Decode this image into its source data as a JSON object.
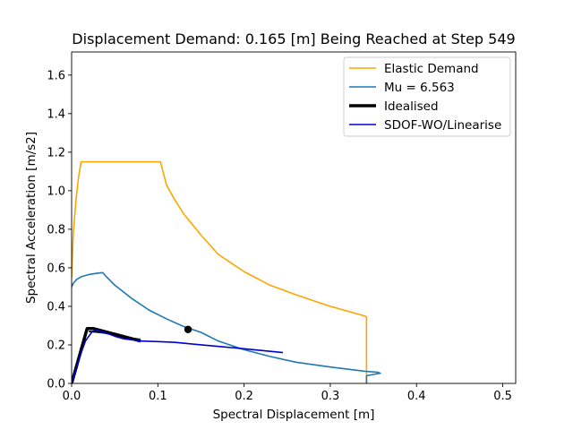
{
  "chart_data": {
    "type": "line",
    "title": "Displacement Demand: 0.165 [m] Being Reached at Step 549",
    "xlabel": "Spectral Displacement [m]",
    "ylabel": "Spectral Acceleration [m/s2]",
    "xlim": [
      0,
      0.515
    ],
    "ylim": [
      0,
      1.72
    ],
    "xticks": [
      0,
      0.1,
      0.2,
      0.3,
      0.4,
      0.5
    ],
    "xtick_labels": [
      "0.0",
      "0.1",
      "0.2",
      "0.3",
      "0.4",
      "0.5"
    ],
    "yticks": [
      0,
      0.2,
      0.4,
      0.6,
      0.8,
      1.0,
      1.2,
      1.4,
      1.6
    ],
    "ytick_labels": [
      "0.0",
      "0.2",
      "0.4",
      "0.6",
      "0.8",
      "1.0",
      "1.2",
      "1.4",
      "1.6"
    ],
    "grid": false,
    "legend_position": "top-right",
    "series": [
      {
        "name": "Elastic Demand",
        "color": "#ffa500",
        "width": 1.6,
        "x": [
          0,
          0.002,
          0.005,
          0.008,
          0.011,
          0.015,
          0.05,
          0.1,
          0.103,
          0.11,
          0.12,
          0.13,
          0.15,
          0.17,
          0.2,
          0.23,
          0.26,
          0.3,
          0.34,
          0.342,
          0.342
        ],
        "y": [
          0.55,
          0.78,
          0.95,
          1.07,
          1.15,
          1.15,
          1.15,
          1.15,
          1.15,
          1.03,
          0.95,
          0.88,
          0.77,
          0.67,
          0.58,
          0.51,
          0.46,
          0.4,
          0.35,
          0.345,
          0
        ]
      },
      {
        "name": "Mu = 6.563",
        "color": "#1f77b4",
        "width": 1.6,
        "x": [
          0,
          0.002,
          0.006,
          0.012,
          0.02,
          0.03,
          0.036,
          0.04,
          0.05,
          0.07,
          0.09,
          0.11,
          0.13,
          0.15,
          0.17,
          0.2,
          0.23,
          0.26,
          0.3,
          0.34,
          0.355,
          0.358,
          0.342,
          0.342
        ],
        "y": [
          0.5,
          0.52,
          0.54,
          0.555,
          0.565,
          0.572,
          0.575,
          0.555,
          0.51,
          0.44,
          0.38,
          0.335,
          0.295,
          0.265,
          0.22,
          0.175,
          0.14,
          0.11,
          0.085,
          0.063,
          0.058,
          0.053,
          0.04,
          0
        ]
      },
      {
        "name": "Idealised",
        "color": "#000000",
        "width": 3.5,
        "x": [
          0,
          0.018,
          0.025,
          0.08
        ],
        "y": [
          0,
          0.285,
          0.285,
          0.22
        ]
      },
      {
        "name": "SDOF-WO/Linearise",
        "color": "#0000cd",
        "width": 1.6,
        "x": [
          0,
          0.008,
          0.016,
          0.024,
          0.03,
          0.04,
          0.05,
          0.06,
          0.08,
          0.1,
          0.12,
          0.15,
          0.2,
          0.245
        ],
        "y": [
          0,
          0.12,
          0.22,
          0.27,
          0.275,
          0.262,
          0.245,
          0.232,
          0.22,
          0.217,
          0.213,
          0.2,
          0.18,
          0.16
        ]
      }
    ],
    "extra_lines": [
      {
        "color": "#1f77b4",
        "width": 1.6,
        "x": [
          0.02,
          0.04,
          0.06,
          0.08
        ],
        "y": [
          0.27,
          0.26,
          0.24,
          0.23
        ]
      },
      {
        "color": "#000000",
        "width": 1.6,
        "x": [
          0.02,
          0.035,
          0.05,
          0.065
        ],
        "y": [
          0.27,
          0.265,
          0.25,
          0.24
        ]
      }
    ],
    "points": [
      {
        "color": "#000000",
        "x": 0.135,
        "y": 0.28
      }
    ]
  }
}
